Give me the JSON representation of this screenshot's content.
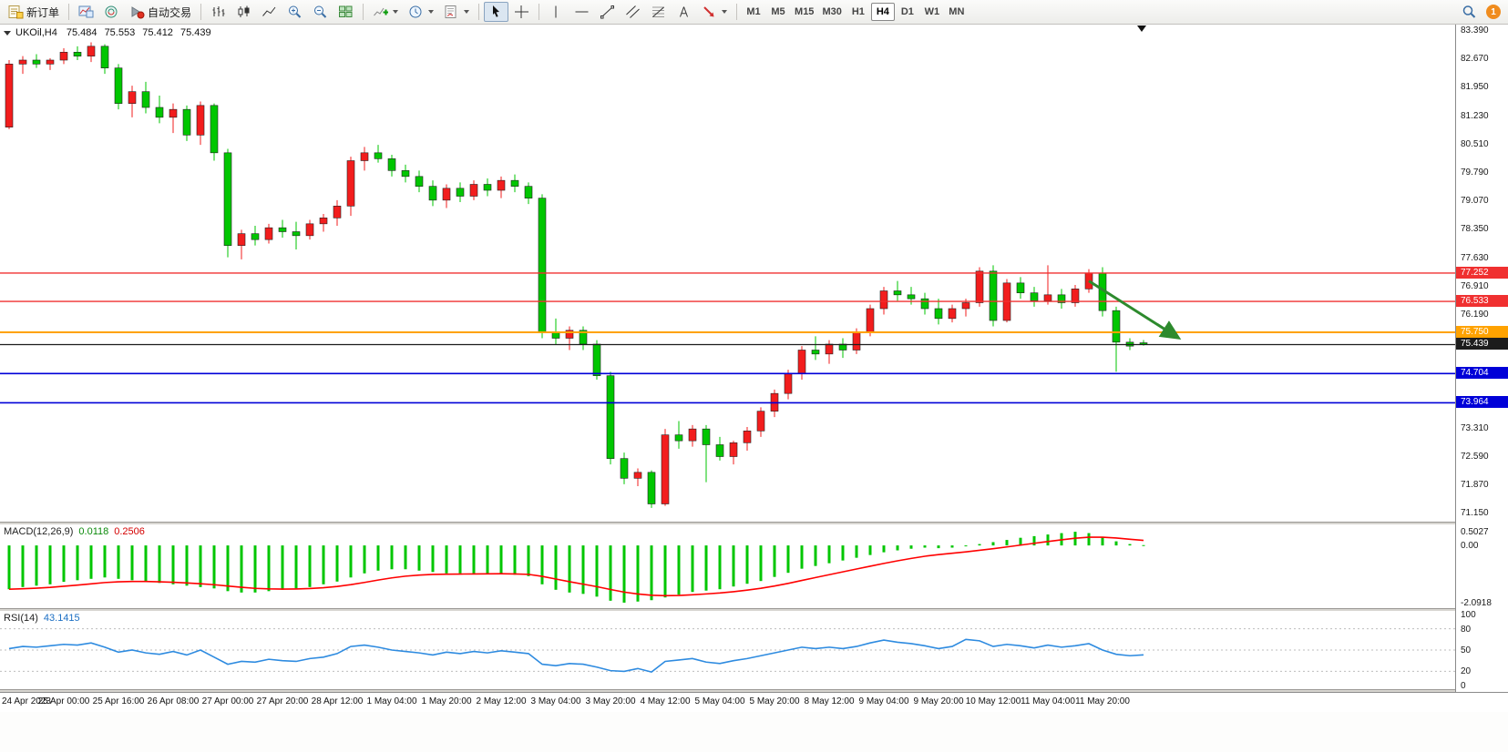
{
  "toolbar": {
    "new_order_label": "新订单",
    "auto_trading_label": "自动交易",
    "timeframes": [
      "M1",
      "M5",
      "M15",
      "M30",
      "H1",
      "H4",
      "D1",
      "W1",
      "MN"
    ],
    "active_timeframe": "H4",
    "notifications_count": "1"
  },
  "chart": {
    "symbol_label": "UKOil,H4",
    "ohlc": {
      "open": "75.484",
      "high": "75.553",
      "low": "75.412",
      "close": "75.439"
    },
    "view": {
      "price_max": 83.55,
      "price_min": 70.95
    },
    "price_scale": [
      "83.390",
      "82.670",
      "81.950",
      "81.230",
      "80.510",
      "79.790",
      "79.070",
      "78.350",
      "77.630",
      "76.910",
      "76.190",
      "73.310",
      "72.590",
      "71.870",
      "71.150"
    ],
    "lines": [
      {
        "price": 77.252,
        "label": "77.252",
        "color": "#f03030",
        "width": 1.3
      },
      {
        "price": 76.533,
        "label": "76.533",
        "color": "#f03030",
        "width": 1.3
      },
      {
        "price": 75.75,
        "label": "75.750",
        "color": "#ffa200",
        "width": 2
      },
      {
        "price": 75.439,
        "label": "75.439",
        "color": "#1c1c1c",
        "width": 1.2
      },
      {
        "price": 74.704,
        "label": "74.704",
        "color": "#0000d8",
        "width": 1.6
      },
      {
        "price": 73.964,
        "label": "73.964",
        "color": "#0000d8",
        "width": 1.6
      }
    ],
    "arrow": {
      "from_index": 79,
      "from_price": 77.05,
      "to_index": 85.5,
      "to_price": 75.62,
      "color": "#2d8a2d"
    }
  },
  "chart_data": {
    "type": "candlestick",
    "symbol": "UKOil",
    "timeframe": "H4",
    "up_color": "#f21d1d",
    "down_color": "#00c600",
    "candles": [
      [
        80.95,
        82.65,
        80.9,
        82.55
      ],
      [
        82.55,
        82.75,
        82.3,
        82.65
      ],
      [
        82.65,
        82.8,
        82.45,
        82.55
      ],
      [
        82.55,
        82.7,
        82.4,
        82.65
      ],
      [
        82.65,
        82.95,
        82.55,
        82.85
      ],
      [
        82.85,
        83.0,
        82.65,
        82.75
      ],
      [
        82.75,
        83.1,
        82.6,
        83.0
      ],
      [
        83.0,
        83.05,
        82.3,
        82.45
      ],
      [
        82.45,
        82.55,
        81.4,
        81.55
      ],
      [
        81.55,
        82.0,
        81.2,
        81.85
      ],
      [
        81.85,
        82.1,
        81.3,
        81.45
      ],
      [
        81.45,
        81.75,
        81.05,
        81.2
      ],
      [
        81.2,
        81.55,
        80.8,
        81.4
      ],
      [
        81.4,
        81.5,
        80.6,
        80.75
      ],
      [
        80.75,
        81.6,
        80.5,
        81.5
      ],
      [
        81.5,
        81.55,
        80.1,
        80.3
      ],
      [
        80.3,
        80.4,
        77.65,
        77.95
      ],
      [
        77.95,
        78.35,
        77.6,
        78.25
      ],
      [
        78.25,
        78.45,
        77.95,
        78.1
      ],
      [
        78.1,
        78.5,
        78.0,
        78.4
      ],
      [
        78.4,
        78.6,
        78.15,
        78.3
      ],
      [
        78.3,
        78.55,
        77.85,
        78.2
      ],
      [
        78.2,
        78.6,
        78.1,
        78.5
      ],
      [
        78.5,
        78.75,
        78.3,
        78.65
      ],
      [
        78.65,
        79.1,
        78.45,
        78.95
      ],
      [
        78.95,
        80.2,
        78.7,
        80.1
      ],
      [
        80.1,
        80.45,
        79.85,
        80.3
      ],
      [
        80.3,
        80.5,
        80.05,
        80.15
      ],
      [
        80.15,
        80.25,
        79.7,
        79.85
      ],
      [
        79.85,
        80.0,
        79.55,
        79.7
      ],
      [
        79.7,
        79.85,
        79.3,
        79.45
      ],
      [
        79.45,
        79.6,
        78.95,
        79.1
      ],
      [
        79.1,
        79.5,
        78.9,
        79.4
      ],
      [
        79.4,
        79.55,
        79.05,
        79.2
      ],
      [
        79.2,
        79.6,
        79.1,
        79.5
      ],
      [
        79.5,
        79.65,
        79.2,
        79.35
      ],
      [
        79.35,
        79.7,
        79.15,
        79.6
      ],
      [
        79.6,
        79.75,
        79.3,
        79.45
      ],
      [
        79.45,
        79.55,
        79.0,
        79.15
      ],
      [
        79.15,
        79.25,
        75.6,
        75.75
      ],
      [
        75.75,
        76.1,
        75.45,
        75.6
      ],
      [
        75.6,
        75.9,
        75.3,
        75.8
      ],
      [
        75.8,
        75.9,
        75.3,
        75.45
      ],
      [
        75.45,
        75.55,
        74.55,
        74.65
      ],
      [
        74.65,
        74.75,
        72.4,
        72.55
      ],
      [
        72.55,
        72.7,
        71.9,
        72.05
      ],
      [
        72.05,
        72.3,
        71.85,
        72.2
      ],
      [
        72.2,
        72.25,
        71.3,
        71.4
      ],
      [
        71.4,
        73.3,
        71.35,
        73.15
      ],
      [
        73.15,
        73.5,
        72.8,
        73.0
      ],
      [
        73.0,
        73.4,
        72.85,
        73.3
      ],
      [
        73.3,
        73.4,
        71.95,
        72.9
      ],
      [
        72.9,
        73.1,
        72.5,
        72.6
      ],
      [
        72.6,
        73.0,
        72.4,
        72.95
      ],
      [
        72.95,
        73.35,
        72.75,
        73.25
      ],
      [
        73.25,
        73.85,
        73.1,
        73.75
      ],
      [
        73.75,
        74.3,
        73.6,
        74.2
      ],
      [
        74.2,
        74.8,
        74.05,
        74.7
      ],
      [
        74.7,
        75.4,
        74.55,
        75.3
      ],
      [
        75.3,
        75.65,
        75.05,
        75.2
      ],
      [
        75.2,
        75.55,
        74.95,
        75.45
      ],
      [
        75.45,
        75.6,
        75.1,
        75.3
      ],
      [
        75.3,
        75.85,
        75.2,
        75.75
      ],
      [
        75.75,
        76.45,
        75.65,
        76.35
      ],
      [
        76.35,
        76.9,
        76.2,
        76.8
      ],
      [
        76.8,
        77.05,
        76.55,
        76.7
      ],
      [
        76.7,
        76.9,
        76.45,
        76.6
      ],
      [
        76.6,
        76.75,
        76.2,
        76.35
      ],
      [
        76.35,
        76.6,
        75.95,
        76.1
      ],
      [
        76.1,
        76.45,
        76.0,
        76.35
      ],
      [
        76.35,
        76.6,
        76.15,
        76.5
      ],
      [
        76.5,
        77.4,
        76.4,
        77.3
      ],
      [
        77.3,
        77.45,
        75.9,
        76.05
      ],
      [
        76.05,
        77.1,
        76.0,
        77.0
      ],
      [
        77.0,
        77.15,
        76.6,
        76.75
      ],
      [
        76.75,
        76.9,
        76.4,
        76.55
      ],
      [
        76.55,
        77.45,
        76.45,
        76.7
      ],
      [
        76.7,
        76.85,
        76.35,
        76.5
      ],
      [
        76.5,
        76.95,
        76.4,
        76.85
      ],
      [
        76.85,
        77.35,
        76.75,
        77.25
      ],
      [
        77.25,
        77.4,
        76.15,
        76.3
      ],
      [
        76.3,
        76.4,
        74.75,
        75.5
      ],
      [
        75.5,
        75.6,
        75.3,
        75.4
      ],
      [
        75.484,
        75.553,
        75.412,
        75.439
      ]
    ]
  },
  "macd": {
    "label": "MACD(12,26,9)",
    "value1": "0.0118",
    "value2": "0.2506",
    "scale": [
      "0.5027",
      "0.00",
      "-2.0918"
    ],
    "range": {
      "max": 0.5027,
      "min": -2.0918
    },
    "histogram": [
      -1.6,
      -1.52,
      -1.47,
      -1.42,
      -1.33,
      -1.27,
      -1.22,
      -1.17,
      -1.22,
      -1.27,
      -1.32,
      -1.37,
      -1.42,
      -1.47,
      -1.52,
      -1.57,
      -1.67,
      -1.72,
      -1.72,
      -1.67,
      -1.62,
      -1.57,
      -1.52,
      -1.42,
      -1.32,
      -1.17,
      -1.02,
      -0.92,
      -0.87,
      -0.87,
      -0.92,
      -0.97,
      -1.02,
      -1.02,
      -1.02,
      -1.02,
      -1.02,
      -1.07,
      -1.12,
      -1.42,
      -1.62,
      -1.72,
      -1.77,
      -1.87,
      -2.02,
      -2.09,
      -2.05,
      -2.0,
      -1.9,
      -1.8,
      -1.7,
      -1.65,
      -1.6,
      -1.5,
      -1.4,
      -1.3,
      -1.15,
      -1.0,
      -0.85,
      -0.75,
      -0.65,
      -0.55,
      -0.45,
      -0.35,
      -0.25,
      -0.18,
      -0.12,
      -0.08,
      -0.1,
      -0.08,
      -0.03,
      0.05,
      0.12,
      0.2,
      0.28,
      0.34,
      0.4,
      0.45,
      0.5,
      0.45,
      0.3,
      0.15,
      0.05,
      0.0118
    ]
  },
  "rsi": {
    "label": "RSI(14)",
    "value": "43.1415",
    "scale": [
      "100",
      "80",
      "50",
      "20",
      "0"
    ],
    "levels": [
      80,
      50,
      20
    ],
    "values": [
      52,
      55,
      54,
      56,
      58,
      57,
      60,
      54,
      47,
      50,
      46,
      44,
      48,
      43,
      50,
      40,
      30,
      34,
      33,
      37,
      35,
      34,
      38,
      40,
      45,
      55,
      57,
      54,
      50,
      48,
      46,
      43,
      47,
      45,
      48,
      46,
      49,
      47,
      45,
      30,
      28,
      31,
      30,
      26,
      21,
      20,
      24,
      19,
      34,
      36,
      38,
      33,
      31,
      35,
      38,
      42,
      46,
      50,
      54,
      52,
      54,
      52,
      55,
      60,
      64,
      61,
      59,
      56,
      52,
      55,
      65,
      63,
      55,
      58,
      56,
      53,
      57,
      54,
      56,
      59,
      50,
      44,
      42,
      43.14
    ]
  },
  "time_axis": [
    "24 Apr 2023",
    "25 Apr 00:00",
    "25 Apr 16:00",
    "26 Apr 08:00",
    "27 Apr 00:00",
    "27 Apr 20:00",
    "28 Apr 12:00",
    "1 May 04:00",
    "1 May 20:00",
    "2 May 12:00",
    "3 May 04:00",
    "3 May 20:00",
    "4 May 12:00",
    "5 May 04:00",
    "5 May 20:00",
    "8 May 12:00",
    "9 May 04:00",
    "9 May 20:00",
    "10 May 12:00",
    "11 May 04:00",
    "11 May 20:00"
  ]
}
